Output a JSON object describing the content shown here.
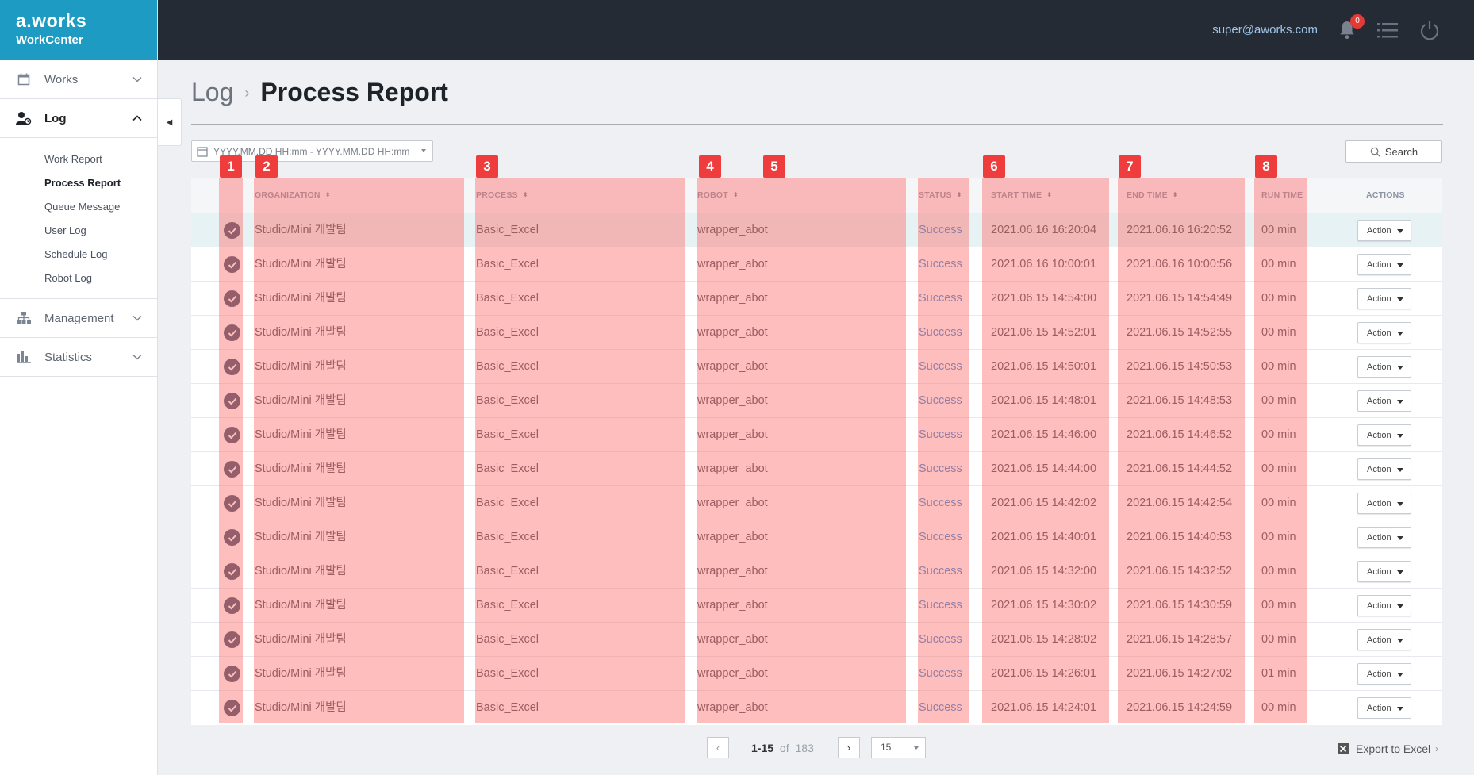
{
  "brand": {
    "logo": "a.works",
    "subtitle": "WorkCenter"
  },
  "header": {
    "user_email": "super@aworks.com",
    "notification_count": "0"
  },
  "sidebar": {
    "items": [
      {
        "label": "Works",
        "icon": "calendar-icon",
        "expanded": false
      },
      {
        "label": "Log",
        "icon": "user-log-icon",
        "expanded": true
      },
      {
        "label": "Management",
        "icon": "hierarchy-icon",
        "expanded": false
      },
      {
        "label": "Statistics",
        "icon": "bar-chart-icon",
        "expanded": false
      }
    ],
    "log_subitems": [
      "Work Report",
      "Process Report",
      "Queue Message",
      "User Log",
      "Schedule Log",
      "Robot Log"
    ],
    "current_subitem": "Process Report"
  },
  "breadcrumb": {
    "parent": "Log",
    "separator": "›",
    "title": "Process Report"
  },
  "filter": {
    "date_placeholder": "YYYY.MM.DD HH:mm - YYYY.MM.DD HH:mm",
    "search_label": "Search"
  },
  "markers": [
    "1",
    "2",
    "3",
    "4",
    "5",
    "6",
    "7",
    "8"
  ],
  "table": {
    "columns": [
      "ORGANIZATION",
      "PROCESS",
      "ROBOT",
      "STATUS",
      "START TIME",
      "END TIME",
      "RUN TIME",
      "ACTIONS"
    ],
    "action_label": "Action",
    "rows": [
      {
        "org": "Studio/Mini 개발팀",
        "process": "Basic_Excel",
        "robot": "wrapper_abot",
        "status": "Success",
        "start": "2021.06.16 16:20:04",
        "end": "2021.06.16 16:20:52",
        "run": "00 min"
      },
      {
        "org": "Studio/Mini 개발팀",
        "process": "Basic_Excel",
        "robot": "wrapper_abot",
        "status": "Success",
        "start": "2021.06.16 10:00:01",
        "end": "2021.06.16 10:00:56",
        "run": "00 min"
      },
      {
        "org": "Studio/Mini 개발팀",
        "process": "Basic_Excel",
        "robot": "wrapper_abot",
        "status": "Success",
        "start": "2021.06.15 14:54:00",
        "end": "2021.06.15 14:54:49",
        "run": "00 min"
      },
      {
        "org": "Studio/Mini 개발팀",
        "process": "Basic_Excel",
        "robot": "wrapper_abot",
        "status": "Success",
        "start": "2021.06.15 14:52:01",
        "end": "2021.06.15 14:52:55",
        "run": "00 min"
      },
      {
        "org": "Studio/Mini 개발팀",
        "process": "Basic_Excel",
        "robot": "wrapper_abot",
        "status": "Success",
        "start": "2021.06.15 14:50:01",
        "end": "2021.06.15 14:50:53",
        "run": "00 min"
      },
      {
        "org": "Studio/Mini 개발팀",
        "process": "Basic_Excel",
        "robot": "wrapper_abot",
        "status": "Success",
        "start": "2021.06.15 14:48:01",
        "end": "2021.06.15 14:48:53",
        "run": "00 min"
      },
      {
        "org": "Studio/Mini 개발팀",
        "process": "Basic_Excel",
        "robot": "wrapper_abot",
        "status": "Success",
        "start": "2021.06.15 14:46:00",
        "end": "2021.06.15 14:46:52",
        "run": "00 min"
      },
      {
        "org": "Studio/Mini 개발팀",
        "process": "Basic_Excel",
        "robot": "wrapper_abot",
        "status": "Success",
        "start": "2021.06.15 14:44:00",
        "end": "2021.06.15 14:44:52",
        "run": "00 min"
      },
      {
        "org": "Studio/Mini 개발팀",
        "process": "Basic_Excel",
        "robot": "wrapper_abot",
        "status": "Success",
        "start": "2021.06.15 14:42:02",
        "end": "2021.06.15 14:42:54",
        "run": "00 min"
      },
      {
        "org": "Studio/Mini 개발팀",
        "process": "Basic_Excel",
        "robot": "wrapper_abot",
        "status": "Success",
        "start": "2021.06.15 14:40:01",
        "end": "2021.06.15 14:40:53",
        "run": "00 min"
      },
      {
        "org": "Studio/Mini 개발팀",
        "process": "Basic_Excel",
        "robot": "wrapper_abot",
        "status": "Success",
        "start": "2021.06.15 14:32:00",
        "end": "2021.06.15 14:32:52",
        "run": "00 min"
      },
      {
        "org": "Studio/Mini 개발팀",
        "process": "Basic_Excel",
        "robot": "wrapper_abot",
        "status": "Success",
        "start": "2021.06.15 14:30:02",
        "end": "2021.06.15 14:30:59",
        "run": "00 min"
      },
      {
        "org": "Studio/Mini 개발팀",
        "process": "Basic_Excel",
        "robot": "wrapper_abot",
        "status": "Success",
        "start": "2021.06.15 14:28:02",
        "end": "2021.06.15 14:28:57",
        "run": "00 min"
      },
      {
        "org": "Studio/Mini 개발팀",
        "process": "Basic_Excel",
        "robot": "wrapper_abot",
        "status": "Success",
        "start": "2021.06.15 14:26:01",
        "end": "2021.06.15 14:27:02",
        "run": "01 min"
      },
      {
        "org": "Studio/Mini 개발팀",
        "process": "Basic_Excel",
        "robot": "wrapper_abot",
        "status": "Success",
        "start": "2021.06.15 14:24:01",
        "end": "2021.06.15 14:24:59",
        "run": "00 min"
      }
    ]
  },
  "pagination": {
    "range": "1-15",
    "of": "of",
    "total": "183",
    "page_size": "15"
  },
  "export_label": "Export to Excel",
  "colors": {
    "brand": "#1e9bc3",
    "header": "#252b35",
    "status_success": "#3b8bd0",
    "marker": "#ef3c3c",
    "highlight": "#ff6e6e"
  }
}
